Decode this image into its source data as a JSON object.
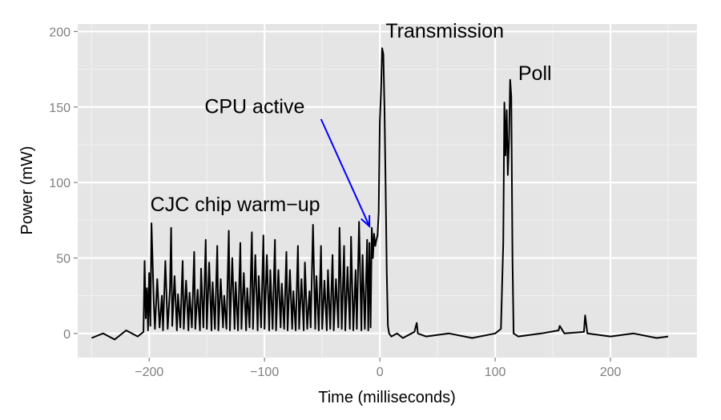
{
  "chart_data": {
    "type": "line",
    "xlabel": "Time (milliseconds)",
    "ylabel": "Power (mW)",
    "xlim": [
      -262,
      275
    ],
    "ylim": [
      -16,
      205
    ],
    "x_ticks": [
      -200,
      -100,
      0,
      100,
      200
    ],
    "x_tick_labels": [
      "−200",
      "−100",
      "0",
      "100",
      "200"
    ],
    "y_ticks": [
      0,
      50,
      100,
      150,
      200
    ],
    "y_tick_labels": [
      "0",
      "50",
      "100",
      "150",
      "200"
    ],
    "grid": true,
    "legend": "none",
    "background_color": "#e5e5e5",
    "grid_color": "#ffffff",
    "line_color": "#000000",
    "arrow_color": "#0000ff",
    "series": [
      {
        "x": [
          -250,
          -240,
          -230,
          -220,
          -210,
          -205,
          -204,
          -203,
          -202,
          -201,
          -200,
          -199,
          -198,
          -196,
          -195,
          -193,
          -191,
          -189,
          -188,
          -186,
          -184,
          -182,
          -181,
          -180,
          -178,
          -176,
          -175,
          -173,
          -171,
          -170,
          -168,
          -166,
          -165,
          -163,
          -161,
          -160,
          -158,
          -156,
          -155,
          -153,
          -151,
          -150,
          -148,
          -146,
          -145,
          -143,
          -141,
          -140,
          -138,
          -136,
          -135,
          -133,
          -131,
          -130,
          -128,
          -126,
          -125,
          -123,
          -121,
          -120,
          -118,
          -116,
          -115,
          -113,
          -111,
          -110,
          -108,
          -106,
          -105,
          -103,
          -101,
          -100,
          -98,
          -96,
          -95,
          -93,
          -91,
          -90,
          -88,
          -86,
          -85,
          -83,
          -81,
          -80,
          -78,
          -76,
          -75,
          -73,
          -71,
          -70,
          -68,
          -66,
          -65,
          -63,
          -61,
          -60,
          -58,
          -56,
          -55,
          -53,
          -51,
          -50,
          -48,
          -46,
          -45,
          -43,
          -41,
          -40,
          -38,
          -36,
          -35,
          -33,
          -31,
          -30,
          -28,
          -26,
          -25,
          -23,
          -21,
          -20,
          -18,
          -16,
          -15,
          -13,
          -11,
          -10,
          -9,
          -8,
          -7,
          -6,
          -5,
          -4,
          -3,
          -2,
          -1,
          0,
          1,
          2,
          3,
          4,
          5,
          6,
          7,
          8,
          10,
          15,
          20,
          30,
          32,
          33,
          40,
          60,
          80,
          100,
          105,
          107,
          108,
          109,
          110,
          111,
          112,
          113,
          114,
          115,
          116,
          120,
          140,
          155,
          156,
          160,
          177,
          178,
          180,
          200,
          220,
          240,
          250
        ],
        "y": [
          -3,
          0,
          -4,
          2,
          -2,
          1,
          48,
          10,
          30,
          2,
          40,
          5,
          73,
          20,
          3,
          36,
          4,
          25,
          2,
          48,
          3,
          30,
          70,
          5,
          38,
          2,
          26,
          4,
          48,
          3,
          35,
          2,
          27,
          4,
          54,
          3,
          29,
          2,
          43,
          4,
          62,
          3,
          47,
          2,
          34,
          3,
          58,
          2,
          36,
          4,
          25,
          3,
          68,
          2,
          50,
          3,
          34,
          2,
          60,
          3,
          40,
          2,
          30,
          4,
          67,
          3,
          52,
          2,
          38,
          4,
          65,
          3,
          52,
          2,
          42,
          3,
          62,
          2,
          42,
          4,
          33,
          3,
          54,
          2,
          42,
          3,
          28,
          2,
          58,
          3,
          36,
          2,
          47,
          3,
          28,
          4,
          72,
          3,
          38,
          2,
          58,
          3,
          35,
          2,
          42,
          3,
          52,
          2,
          36,
          4,
          70,
          3,
          58,
          2,
          44,
          3,
          64,
          2,
          42,
          3,
          74,
          2,
          52,
          3,
          62,
          2,
          60,
          4,
          70,
          50,
          66,
          58,
          62,
          65,
          80,
          140,
          160,
          189,
          185,
          150,
          100,
          40,
          5,
          0,
          -2,
          0,
          -3,
          1,
          7,
          0,
          -2,
          0,
          -3,
          0,
          3,
          60,
          153,
          118,
          148,
          105,
          128,
          168,
          157,
          50,
          0,
          -2,
          0,
          2,
          5,
          0,
          1,
          12,
          0,
          -2,
          0,
          -3,
          -2
        ]
      }
    ],
    "annotations": [
      {
        "text": "Transmission",
        "x": 5,
        "y": 196
      },
      {
        "text": "Poll",
        "x": 120,
        "y": 168
      },
      {
        "text": "CPU active",
        "x": -152,
        "y": 146
      },
      {
        "text": "CJC chip warm−up",
        "x": -199,
        "y": 81
      }
    ],
    "arrow": {
      "from": [
        -51,
        142
      ],
      "to": [
        -9,
        71
      ]
    }
  }
}
